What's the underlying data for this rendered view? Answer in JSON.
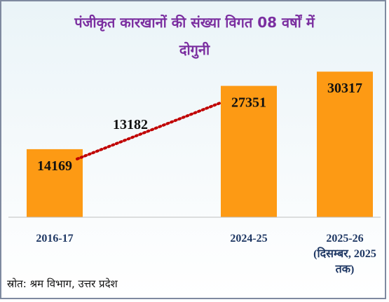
{
  "title": {
    "line1": "पंजीकृत कारखानों की संख्या विगत 08 वर्षों में",
    "line2": "दोगुनी"
  },
  "source": "स्रोत: श्रम विभाग, उत्तर प्रदेश",
  "colors": {
    "bar": "#fd9a14",
    "title": "#7b2fa0",
    "trend": "#c00000"
  },
  "chart_data": {
    "type": "bar",
    "categories": [
      [
        "2016-17"
      ],
      [
        "2024-25"
      ],
      [
        "2025-26",
        "(दिसम्बर, 2025",
        "तक)"
      ]
    ],
    "values": [
      14169,
      27351,
      30317
    ],
    "data_labels": [
      "14169",
      "27351",
      "30317"
    ],
    "annotation": "13182",
    "trend_line": {
      "from": 0,
      "to": 1,
      "style": "dotted"
    },
    "ylim": [
      0,
      34000
    ]
  }
}
